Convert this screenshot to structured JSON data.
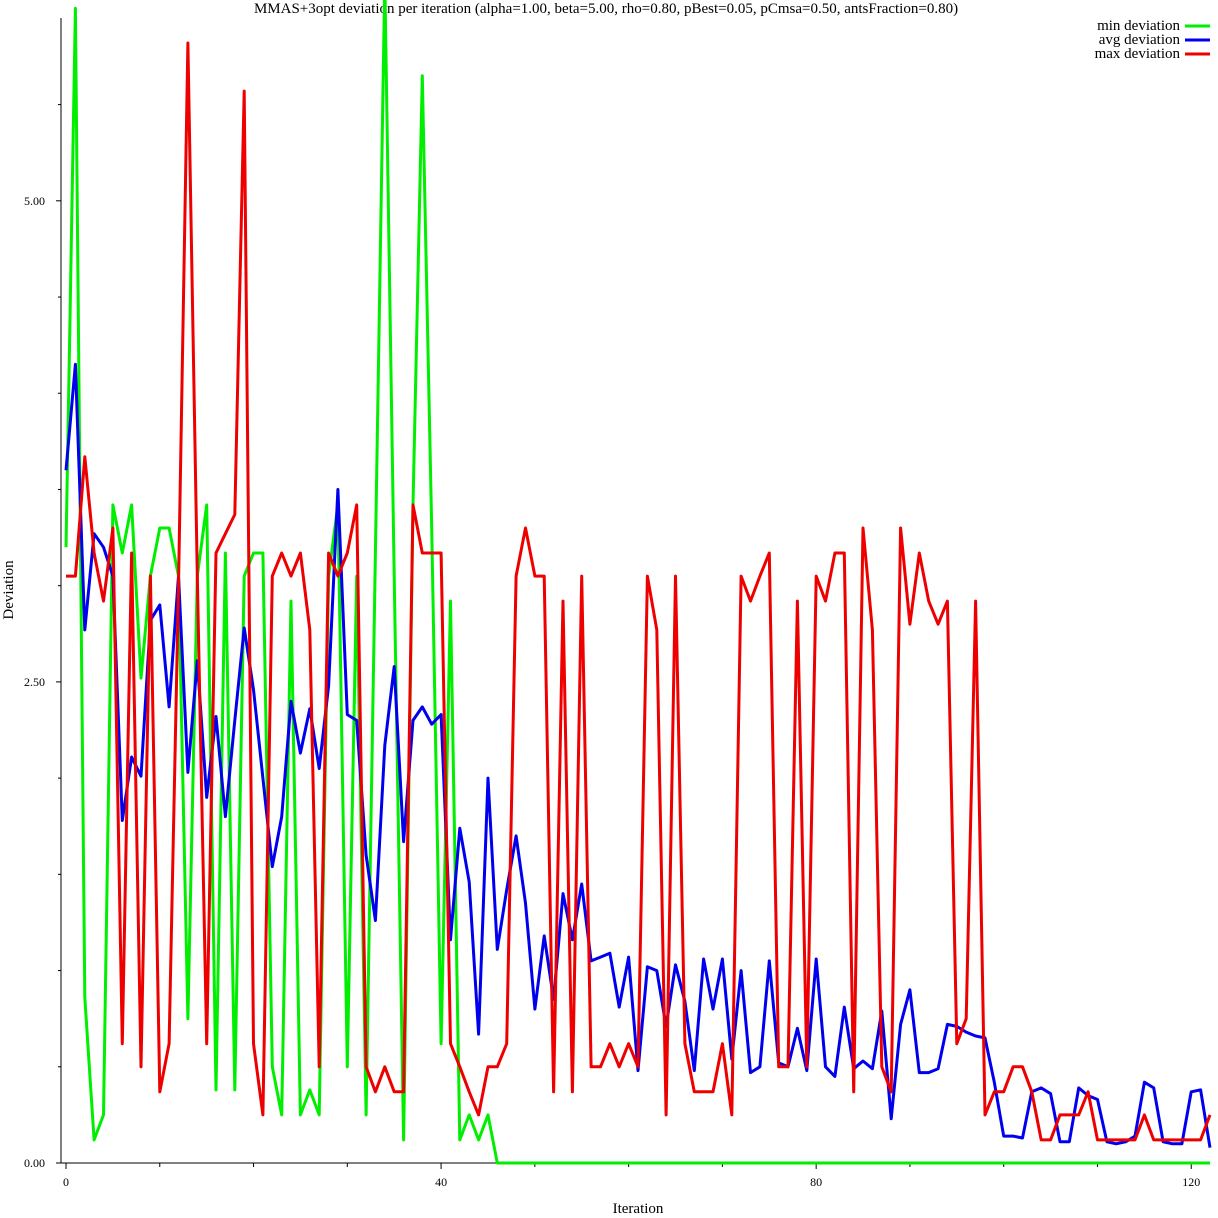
{
  "chart_data": {
    "type": "line",
    "title": "MMAS+3opt deviation per iteration (alpha=1.00, beta=5.00, rho=0.80, pBest=0.05, pCmsa=0.50, antsFraction=0.80)",
    "xlabel": "Iteration",
    "ylabel": "Deviation",
    "xlim": [
      0,
      122
    ],
    "ylim": [
      0,
      5.95
    ],
    "x_ticks": [
      0,
      40,
      80,
      120
    ],
    "x_tick_labels": [
      "0",
      "40",
      "80",
      "120"
    ],
    "y_ticks": [
      0,
      2.5,
      5.0
    ],
    "y_tick_labels": [
      "0.00",
      "2.50",
      "5.00"
    ],
    "legend": "top-right",
    "grid": false,
    "series": [
      {
        "name": "min deviation",
        "color": "#00ee00",
        "x": [
          0,
          1,
          2,
          3,
          4,
          5,
          6,
          7,
          8,
          9,
          10,
          11,
          12,
          13,
          14,
          15,
          16,
          17,
          18,
          19,
          20,
          21,
          22,
          23,
          24,
          25,
          26,
          27,
          28,
          29,
          30,
          31,
          32,
          33,
          34,
          35,
          36,
          37,
          38,
          39,
          40,
          41,
          42,
          43,
          44,
          45,
          46,
          47,
          48,
          49,
          50,
          55,
          60,
          65,
          70,
          75,
          80,
          85,
          90,
          95,
          100,
          105,
          110,
          115,
          120,
          122
        ],
        "values": [
          3.2,
          6.0,
          0.86,
          0.12,
          0.25,
          3.42,
          3.17,
          3.42,
          2.52,
          3.05,
          3.3,
          3.3,
          3.05,
          0.75,
          3.05,
          3.42,
          0.38,
          3.17,
          0.38,
          3.05,
          3.17,
          3.17,
          0.5,
          0.25,
          2.92,
          0.25,
          0.38,
          0.25,
          3.05,
          3.42,
          0.5,
          3.05,
          0.25,
          3.17,
          6.15,
          3.05,
          0.12,
          3.42,
          5.65,
          3.3,
          0.62,
          2.92,
          0.12,
          0.25,
          0.12,
          0.25,
          0.0,
          0.0,
          0.0,
          0.0,
          0.0,
          0.0,
          0.0,
          0.0,
          0.0,
          0.0,
          0.0,
          0.0,
          0.0,
          0.0,
          0.0,
          0.0,
          0.0,
          0.0,
          0.0,
          0.0
        ]
      },
      {
        "name": "avg deviation",
        "color": "#0000ee",
        "x": [
          0,
          1,
          2,
          3,
          4,
          5,
          6,
          7,
          8,
          9,
          10,
          11,
          12,
          13,
          14,
          15,
          16,
          17,
          18,
          19,
          20,
          21,
          22,
          23,
          24,
          25,
          26,
          27,
          28,
          29,
          30,
          31,
          32,
          33,
          34,
          35,
          36,
          37,
          38,
          39,
          40,
          41,
          42,
          43,
          44,
          45,
          46,
          47,
          48,
          49,
          50,
          51,
          52,
          53,
          54,
          55,
          56,
          57,
          58,
          59,
          60,
          61,
          62,
          63,
          64,
          65,
          66,
          67,
          68,
          69,
          70,
          71,
          72,
          73,
          74,
          75,
          76,
          77,
          78,
          79,
          80,
          81,
          82,
          83,
          84,
          85,
          86,
          87,
          88,
          89,
          90,
          91,
          92,
          93,
          94,
          95,
          96,
          97,
          98,
          99,
          100,
          101,
          102,
          103,
          104,
          105,
          106,
          107,
          108,
          109,
          110,
          111,
          112,
          113,
          114,
          115,
          116,
          117,
          118,
          119,
          120,
          121,
          122
        ],
        "values": [
          3.6,
          4.15,
          2.77,
          3.27,
          3.2,
          3.05,
          1.78,
          2.11,
          2.01,
          2.82,
          2.9,
          2.37,
          3.05,
          2.03,
          2.61,
          1.9,
          2.32,
          1.8,
          2.3,
          2.78,
          2.46,
          2.0,
          1.54,
          1.8,
          2.4,
          2.13,
          2.36,
          2.05,
          2.48,
          3.5,
          2.33,
          2.3,
          1.6,
          1.26,
          2.17,
          2.58,
          1.67,
          2.3,
          2.37,
          2.28,
          2.33,
          1.16,
          1.74,
          1.46,
          0.67,
          2.0,
          1.11,
          1.42,
          1.7,
          1.35,
          0.8,
          1.18,
          0.85,
          1.4,
          1.16,
          1.45,
          1.05,
          1.07,
          1.09,
          0.81,
          1.07,
          0.48,
          1.02,
          1.0,
          0.71,
          1.03,
          0.84,
          0.48,
          1.06,
          0.8,
          1.06,
          0.54,
          1.0,
          0.47,
          0.5,
          1.05,
          0.52,
          0.5,
          0.7,
          0.48,
          1.06,
          0.5,
          0.45,
          0.81,
          0.49,
          0.53,
          0.49,
          0.79,
          0.23,
          0.72,
          0.9,
          0.47,
          0.47,
          0.49,
          0.72,
          0.71,
          0.68,
          0.66,
          0.65,
          0.42,
          0.14,
          0.14,
          0.13,
          0.37,
          0.39,
          0.36,
          0.11,
          0.11,
          0.39,
          0.35,
          0.33,
          0.11,
          0.1,
          0.11,
          0.14,
          0.42,
          0.39,
          0.11,
          0.1,
          0.1,
          0.37,
          0.38,
          0.08
        ]
      },
      {
        "name": "max deviation",
        "color": "#ee0000",
        "x": [
          0,
          1,
          2,
          3,
          4,
          5,
          6,
          7,
          8,
          9,
          10,
          11,
          12,
          13,
          14,
          15,
          16,
          17,
          18,
          19,
          20,
          21,
          22,
          23,
          24,
          25,
          26,
          27,
          28,
          29,
          30,
          31,
          32,
          33,
          34,
          35,
          36,
          37,
          38,
          39,
          40,
          41,
          42,
          43,
          44,
          45,
          46,
          47,
          48,
          49,
          50,
          51,
          52,
          53,
          54,
          55,
          56,
          57,
          58,
          59,
          60,
          61,
          62,
          63,
          64,
          65,
          66,
          67,
          68,
          69,
          70,
          71,
          72,
          73,
          74,
          75,
          76,
          77,
          78,
          79,
          80,
          81,
          82,
          83,
          84,
          85,
          86,
          87,
          88,
          89,
          90,
          91,
          92,
          93,
          94,
          95,
          96,
          97,
          98,
          99,
          100,
          101,
          102,
          103,
          104,
          105,
          106,
          107,
          108,
          109,
          110,
          111,
          112,
          113,
          114,
          115,
          116,
          117,
          118,
          119,
          120,
          121,
          122
        ],
        "values": [
          3.05,
          3.05,
          3.67,
          3.17,
          2.92,
          3.3,
          0.62,
          3.17,
          0.5,
          3.05,
          0.37,
          0.62,
          3.0,
          5.82,
          3.05,
          0.62,
          3.17,
          3.27,
          3.37,
          5.57,
          0.62,
          0.25,
          3.05,
          3.17,
          3.05,
          3.17,
          2.77,
          0.5,
          3.17,
          3.05,
          3.17,
          3.42,
          0.5,
          0.37,
          0.5,
          0.37,
          0.37,
          3.42,
          3.17,
          3.17,
          3.17,
          0.62,
          0.5,
          0.37,
          0.25,
          0.5,
          0.5,
          0.62,
          3.05,
          3.3,
          3.05,
          3.05,
          0.37,
          2.92,
          0.37,
          3.05,
          0.5,
          0.5,
          0.62,
          0.5,
          0.62,
          0.5,
          3.05,
          2.77,
          0.25,
          3.05,
          0.62,
          0.37,
          0.37,
          0.37,
          0.62,
          0.25,
          3.05,
          2.92,
          3.05,
          3.17,
          0.5,
          0.5,
          2.92,
          0.5,
          3.05,
          2.92,
          3.17,
          3.17,
          0.37,
          3.3,
          2.77,
          0.5,
          0.37,
          3.3,
          2.8,
          3.17,
          2.92,
          2.8,
          2.92,
          0.62,
          0.75,
          2.92,
          0.25,
          0.37,
          0.37,
          0.5,
          0.5,
          0.37,
          0.12,
          0.12,
          0.25,
          0.25,
          0.25,
          0.37,
          0.12,
          0.12,
          0.12,
          0.12,
          0.12,
          0.25,
          0.12,
          0.12,
          0.12,
          0.12,
          0.12,
          0.12,
          0.25
        ]
      }
    ]
  }
}
